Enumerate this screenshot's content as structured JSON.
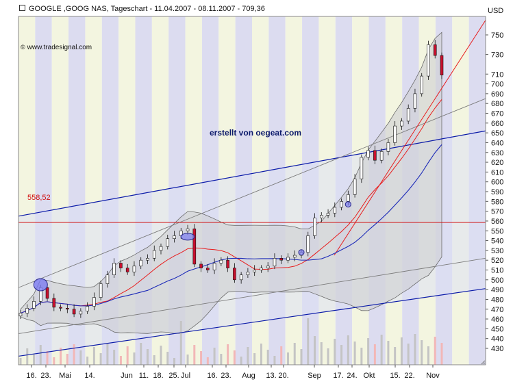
{
  "header": {
    "title": "GOOGLE ,GOOG NAS, Tageschart - 11.04.2007 - 08.11.2007 - 709,36",
    "source": "www.tradesignal.com",
    "watermark": "erstellt von oegeat.com",
    "currency": "USD"
  },
  "colors": {
    "background": "#ffffff",
    "stripe_light": "#f3f5e0",
    "stripe_blue": "#dcdcf0",
    "channel_fill": "#dde0f4",
    "bollinger_fill": "#cfcfd2",
    "line_red": "#e81c1c",
    "line_blue": "#1c2ab8",
    "channel_blue": "#0a1aa8",
    "trend_gray": "#7b7b7b",
    "horizontal_red": "#d01010",
    "volume_gray": "#c4c4c4",
    "volume_pink": "#f2b7b7"
  },
  "chart_data": {
    "type": "candlestick",
    "title": "GOOGLE ,GOOG NAS, Tageschart - 11.04.2007 - 08.11.2007 - 709,36",
    "currency": "USD",
    "ylim": [
      420,
      760
    ],
    "y_ticks": [
      430,
      440,
      450,
      460,
      470,
      480,
      490,
      500,
      510,
      520,
      530,
      540,
      550,
      560,
      570,
      580,
      590,
      600,
      610,
      620,
      630,
      640,
      650,
      660,
      670,
      680,
      690,
      700,
      710,
      730,
      750
    ],
    "x_tick_labels": [
      "16.",
      "23.",
      "Mai",
      "14.",
      "Jun",
      "11.",
      "18.",
      "25.",
      "Jul",
      "16.",
      "23.",
      "Aug",
      "13.",
      "20.",
      "Sep",
      "17.",
      "24.",
      "Okt",
      "15.",
      "22.",
      "Nov"
    ],
    "horizontal_line": {
      "value": 558.52,
      "label": "558,52"
    },
    "close_series": [
      {
        "label": "11.04.",
        "close": 466
      },
      {
        "label": "16.",
        "close": 471
      },
      {
        "label": "23.",
        "close": 478
      },
      {
        "label": "",
        "close": 492
      },
      {
        "label": "",
        "close": 481
      },
      {
        "label": "Mai",
        "close": 472
      },
      {
        "label": "",
        "close": 471
      },
      {
        "label": "",
        "close": 470
      },
      {
        "label": "14.",
        "close": 465
      },
      {
        "label": "",
        "close": 468
      },
      {
        "label": "",
        "close": 473
      },
      {
        "label": "",
        "close": 482
      },
      {
        "label": "",
        "close": 496
      },
      {
        "label": "",
        "close": 505
      },
      {
        "label": "Jun",
        "close": 517
      },
      {
        "label": "",
        "close": 512
      },
      {
        "label": "11.",
        "close": 508
      },
      {
        "label": "18.",
        "close": 514
      },
      {
        "label": "",
        "close": 520
      },
      {
        "label": "25.",
        "close": 522
      },
      {
        "label": "",
        "close": 530
      },
      {
        "label": "Jul",
        "close": 534
      },
      {
        "label": "",
        "close": 542
      },
      {
        "label": "",
        "close": 545
      },
      {
        "label": "16.",
        "close": 550
      },
      {
        "label": "",
        "close": 552
      },
      {
        "label": "23.",
        "close": 516
      },
      {
        "label": "",
        "close": 512
      },
      {
        "label": "",
        "close": 510
      },
      {
        "label": "Aug",
        "close": 517
      },
      {
        "label": "",
        "close": 520
      },
      {
        "label": "",
        "close": 512
      },
      {
        "label": "13.",
        "close": 500
      },
      {
        "label": "",
        "close": 505
      },
      {
        "label": "20.",
        "close": 508
      },
      {
        "label": "",
        "close": 510
      },
      {
        "label": "",
        "close": 512
      },
      {
        "label": "",
        "close": 514
      },
      {
        "label": "Sep",
        "close": 522
      },
      {
        "label": "",
        "close": 520
      },
      {
        "label": "",
        "close": 523
      },
      {
        "label": "",
        "close": 525
      },
      {
        "label": "17.",
        "close": 528
      },
      {
        "label": "",
        "close": 545
      },
      {
        "label": "24.",
        "close": 563
      },
      {
        "label": "",
        "close": 566
      },
      {
        "label": "",
        "close": 568
      },
      {
        "label": "",
        "close": 574
      },
      {
        "label": "Okt",
        "close": 580
      },
      {
        "label": "",
        "close": 587
      },
      {
        "label": "",
        "close": 603
      },
      {
        "label": "",
        "close": 625
      },
      {
        "label": "",
        "close": 632
      },
      {
        "label": "15.",
        "close": 622
      },
      {
        "label": "",
        "close": 631
      },
      {
        "label": "22.",
        "close": 640
      },
      {
        "label": "",
        "close": 657
      },
      {
        "label": "",
        "close": 662
      },
      {
        "label": "",
        "close": 675
      },
      {
        "label": "",
        "close": 690
      },
      {
        "label": "Nov",
        "close": 708
      },
      {
        "label": "",
        "close": 740
      },
      {
        "label": "",
        "close": 729
      },
      {
        "label": "08.11.",
        "close": 709
      }
    ],
    "grid": false,
    "legend": "none"
  }
}
